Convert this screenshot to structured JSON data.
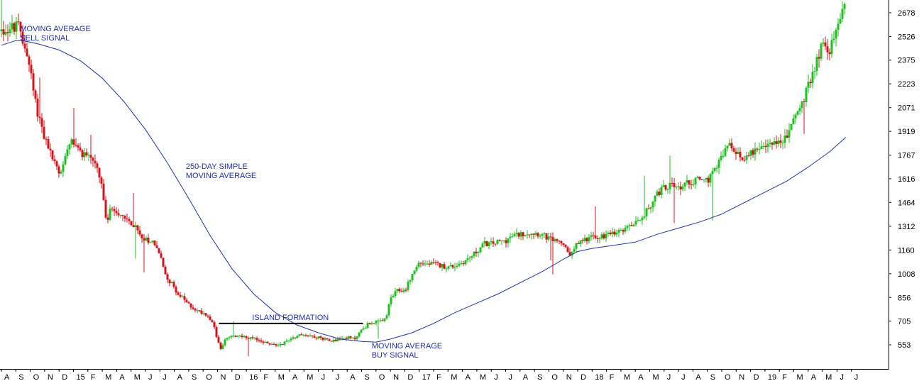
{
  "chart_data": {
    "type": "candlestick",
    "title": "",
    "xlabel": "",
    "ylabel": "",
    "ylim": [
      430,
      2760
    ],
    "y_ticks": [
      553,
      705,
      856,
      1008,
      1160,
      1312,
      1464,
      1616,
      1767,
      1919,
      2071,
      2223,
      2375,
      2526,
      2678
    ],
    "x_ticks": [
      "A",
      "S",
      "O",
      "N",
      "D",
      "15",
      "F",
      "M",
      "A",
      "M",
      "J",
      "J",
      "A",
      "S",
      "O",
      "N",
      "D",
      "16",
      "F",
      "M",
      "A",
      "M",
      "J",
      "J",
      "A",
      "S",
      "O",
      "N",
      "D",
      "17",
      "F",
      "M",
      "A",
      "M",
      "J",
      "J",
      "A",
      "S",
      "O",
      "N",
      "D",
      "18",
      "F",
      "M",
      "A",
      "M",
      "J",
      "J",
      "A",
      "S",
      "O",
      "N",
      "D",
      "19",
      "F",
      "M",
      "A",
      "M",
      "J",
      "J"
    ],
    "x_range_months": [
      0,
      60
    ],
    "grid": false,
    "colors": {
      "up": "#1ec21e",
      "down": "#d4141c",
      "moving_average": "#1f2fb3",
      "annotation": "#1f2fb3",
      "axis": "#000000",
      "flat_line": "#000000"
    },
    "price_path": [
      [
        0.0,
        2560
      ],
      [
        1.2,
        2590
      ],
      [
        1.5,
        2480
      ],
      [
        1.8,
        2420
      ],
      [
        2.1,
        2250
      ],
      [
        2.4,
        2080
      ],
      [
        2.7,
        1980
      ],
      [
        3.0,
        1880
      ],
      [
        3.3,
        1800
      ],
      [
        3.6,
        1740
      ],
      [
        4.0,
        1650
      ],
      [
        4.3,
        1700
      ],
      [
        4.6,
        1840
      ],
      [
        4.9,
        1880
      ],
      [
        5.3,
        1800
      ],
      [
        5.6,
        1780
      ],
      [
        5.9,
        1770
      ],
      [
        6.3,
        1750
      ],
      [
        6.6,
        1680
      ],
      [
        7.0,
        1560
      ],
      [
        7.3,
        1300
      ],
      [
        7.6,
        1440
      ],
      [
        7.9,
        1410
      ],
      [
        8.3,
        1390
      ],
      [
        8.6,
        1370
      ],
      [
        9.0,
        1330
      ],
      [
        9.3,
        1300
      ],
      [
        9.6,
        1260
      ],
      [
        10.0,
        1230
      ],
      [
        10.3,
        1220
      ],
      [
        10.6,
        1210
      ],
      [
        11.0,
        1130
      ],
      [
        11.3,
        1020
      ],
      [
        11.6,
        970
      ],
      [
        12.0,
        920
      ],
      [
        12.3,
        870
      ],
      [
        12.6,
        850
      ],
      [
        13.0,
        810
      ],
      [
        13.3,
        790
      ],
      [
        13.6,
        770
      ],
      [
        14.0,
        760
      ],
      [
        14.3,
        740
      ],
      [
        14.6,
        710
      ],
      [
        14.9,
        620
      ],
      [
        15.2,
        520
      ],
      [
        15.5,
        580
      ],
      [
        15.8,
        600
      ],
      [
        16.2,
        610
      ],
      [
        16.6,
        610
      ],
      [
        17.0,
        600
      ],
      [
        17.5,
        590
      ],
      [
        18.0,
        580
      ],
      [
        18.5,
        560
      ],
      [
        19.0,
        550
      ],
      [
        19.5,
        560
      ],
      [
        20.0,
        590
      ],
      [
        20.5,
        610
      ],
      [
        21.0,
        620
      ],
      [
        21.5,
        610
      ],
      [
        22.0,
        600
      ],
      [
        22.5,
        590
      ],
      [
        23.0,
        580
      ],
      [
        23.5,
        590
      ],
      [
        24.0,
        600
      ],
      [
        24.5,
        590
      ],
      [
        25.0,
        650
      ],
      [
        25.5,
        690
      ],
      [
        26.0,
        700
      ],
      [
        26.5,
        700
      ],
      [
        26.8,
        760
      ],
      [
        27.0,
        850
      ],
      [
        27.5,
        900
      ],
      [
        28.0,
        900
      ],
      [
        28.5,
        1000
      ],
      [
        29.0,
        1080
      ],
      [
        29.5,
        1070
      ],
      [
        30.0,
        1070
      ],
      [
        30.5,
        1060
      ],
      [
        31.0,
        1050
      ],
      [
        31.5,
        1060
      ],
      [
        32.0,
        1080
      ],
      [
        32.5,
        1110
      ],
      [
        33.0,
        1150
      ],
      [
        33.5,
        1200
      ],
      [
        34.0,
        1200
      ],
      [
        34.5,
        1210
      ],
      [
        35.0,
        1220
      ],
      [
        35.5,
        1250
      ],
      [
        36.0,
        1260
      ],
      [
        36.5,
        1270
      ],
      [
        37.0,
        1270
      ],
      [
        37.5,
        1260
      ],
      [
        38.0,
        1230
      ],
      [
        38.5,
        1220
      ],
      [
        39.0,
        1200
      ],
      [
        39.3,
        1130
      ],
      [
        39.6,
        1140
      ],
      [
        40.0,
        1200
      ],
      [
        40.5,
        1230
      ],
      [
        41.0,
        1240
      ],
      [
        41.5,
        1250
      ],
      [
        42.0,
        1250
      ],
      [
        42.5,
        1260
      ],
      [
        43.0,
        1280
      ],
      [
        43.5,
        1300
      ],
      [
        44.0,
        1340
      ],
      [
        44.5,
        1380
      ],
      [
        45.0,
        1440
      ],
      [
        45.5,
        1520
      ],
      [
        46.0,
        1560
      ],
      [
        46.5,
        1580
      ],
      [
        47.0,
        1560
      ],
      [
        47.5,
        1580
      ],
      [
        48.0,
        1600
      ],
      [
        48.5,
        1620
      ],
      [
        49.0,
        1600
      ],
      [
        49.5,
        1660
      ],
      [
        50.0,
        1760
      ],
      [
        50.5,
        1830
      ],
      [
        51.0,
        1770
      ],
      [
        51.5,
        1740
      ],
      [
        52.0,
        1800
      ],
      [
        52.5,
        1790
      ],
      [
        53.0,
        1810
      ],
      [
        53.5,
        1860
      ],
      [
        54.0,
        1840
      ],
      [
        54.5,
        1880
      ],
      [
        55.0,
        2010
      ],
      [
        55.5,
        2080
      ],
      [
        56.0,
        2200
      ],
      [
        56.5,
        2350
      ],
      [
        57.0,
        2480
      ],
      [
        57.5,
        2440
      ],
      [
        58.0,
        2570
      ],
      [
        58.3,
        2700
      ],
      [
        58.6,
        2740
      ]
    ],
    "price_high_low_range": [
      1.0,
      2740
    ],
    "moving_average": {
      "name": "250-DAY SIMPLE MOVING AVERAGE",
      "points": [
        [
          0,
          2470
        ],
        [
          1,
          2500
        ],
        [
          1.5,
          2500
        ],
        [
          2.5,
          2480
        ],
        [
          4,
          2440
        ],
        [
          5.5,
          2370
        ],
        [
          7,
          2260
        ],
        [
          8.5,
          2110
        ],
        [
          10,
          1930
        ],
        [
          11.5,
          1720
        ],
        [
          13,
          1490
        ],
        [
          14.5,
          1250
        ],
        [
          16,
          1040
        ],
        [
          17.5,
          880
        ],
        [
          19,
          760
        ],
        [
          20.5,
          680
        ],
        [
          22,
          630
        ],
        [
          23.5,
          590
        ],
        [
          25,
          575
        ],
        [
          26,
          570
        ],
        [
          27,
          590
        ],
        [
          28.5,
          630
        ],
        [
          30,
          690
        ],
        [
          31.5,
          760
        ],
        [
          33,
          820
        ],
        [
          34.5,
          880
        ],
        [
          36,
          950
        ],
        [
          37.5,
          1020
        ],
        [
          39,
          1100
        ],
        [
          40,
          1150
        ],
        [
          41,
          1170
        ],
        [
          42.5,
          1190
        ],
        [
          44,
          1210
        ],
        [
          45.5,
          1260
        ],
        [
          47,
          1300
        ],
        [
          48.5,
          1340
        ],
        [
          50,
          1390
        ],
        [
          51.5,
          1460
        ],
        [
          53,
          1530
        ],
        [
          54.5,
          1600
        ],
        [
          56,
          1690
        ],
        [
          57.5,
          1790
        ],
        [
          58.6,
          1880
        ]
      ]
    },
    "island_formation_level": 690,
    "island_formation_x": [
      15.1,
      25.1
    ],
    "annotations": [
      {
        "lines": [
          "MOVING AVERAGE",
          "SELL SIGNAL"
        ],
        "x": 1.3,
        "y": 2560
      },
      {
        "lines": [
          "250-DAY SIMPLE",
          "MOVING AVERAGE"
        ],
        "x": 12.8,
        "y": 1680
      },
      {
        "lines": [
          "ISLAND FORMATION"
        ],
        "x": 17.4,
        "y": 712
      },
      {
        "lines": [
          "MOVING AVERAGE",
          "BUY SIGNAL"
        ],
        "x": 25.7,
        "y": 530
      }
    ]
  }
}
